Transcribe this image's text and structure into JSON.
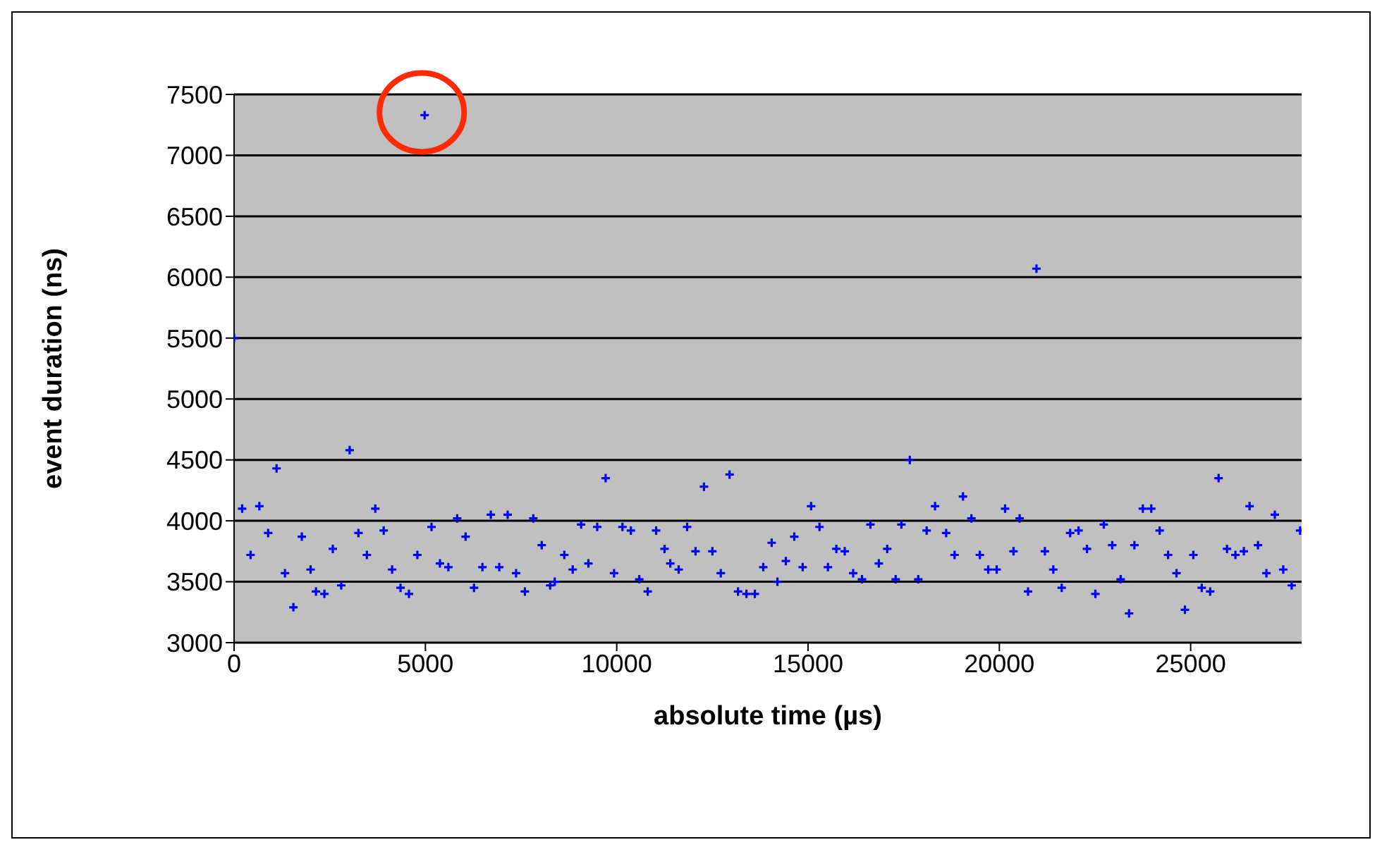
{
  "chart_data": {
    "type": "scatter",
    "xlabel": "absolute time (µs)",
    "ylabel": "event duration (ns)",
    "xlim": [
      0,
      27900
    ],
    "xticks": [
      0,
      5000,
      10000,
      15000,
      20000,
      25000
    ],
    "ylim": [
      3000,
      7500
    ],
    "yticks": [
      3000,
      3500,
      4000,
      4500,
      5000,
      5500,
      6000,
      6500,
      7000,
      7500
    ],
    "grid": "y",
    "legend": false,
    "marker": "cross",
    "series": [
      {
        "color": "#0000ff",
        "x": [
          0,
          210,
          430,
          660,
          890,
          1110,
          1330,
          1550,
          1770,
          2000,
          2140,
          2360,
          2580,
          2800,
          3020,
          3250,
          3470,
          3690,
          3910,
          4130,
          4350,
          4570,
          4790,
          4980,
          5160,
          5380,
          5600,
          5830,
          6050,
          6270,
          6490,
          6710,
          6930,
          7150,
          7370,
          7600,
          7820,
          8040,
          8260,
          8380,
          8630,
          8850,
          9070,
          9260,
          9490,
          9710,
          9930,
          10150,
          10370,
          10590,
          10810,
          11030,
          11250,
          11400,
          11620,
          11840,
          12060,
          12280,
          12500,
          12720,
          12950,
          13170,
          13390,
          13610,
          13830,
          14050,
          14200,
          14420,
          14640,
          14860,
          15080,
          15300,
          15520,
          15740,
          15960,
          16180,
          16410,
          16630,
          16850,
          17070,
          17290,
          17440,
          17660,
          17880,
          18100,
          18320,
          18610,
          18830,
          19050,
          19270,
          19490,
          19710,
          19930,
          20150,
          20370,
          20530,
          20750,
          20970,
          21190,
          21410,
          21630,
          21850,
          22070,
          22290,
          22510,
          22730,
          22950,
          23170,
          23390,
          23530,
          23750,
          23970,
          24190,
          24410,
          24630,
          24850,
          25070,
          25290,
          25510,
          25730,
          25950,
          26170,
          26390,
          26540,
          26760,
          26980,
          27200,
          27420,
          27640,
          27860
        ],
        "values": [
          5500,
          4100,
          3720,
          4120,
          3900,
          4430,
          3570,
          3290,
          3870,
          3600,
          3420,
          3400,
          3770,
          3470,
          4580,
          3900,
          3720,
          4100,
          3920,
          3600,
          3450,
          3400,
          3720,
          7330,
          3950,
          3650,
          3620,
          4020,
          3870,
          3450,
          3620,
          4050,
          3620,
          4050,
          3570,
          3420,
          4020,
          3800,
          3470,
          3500,
          3720,
          3600,
          3970,
          3650,
          3950,
          4350,
          3570,
          3950,
          3920,
          3520,
          3420,
          3920,
          3770,
          3650,
          3600,
          3950,
          3750,
          4280,
          3750,
          3570,
          4380,
          3420,
          3400,
          3400,
          3620,
          3820,
          3500,
          3670,
          3870,
          3620,
          4120,
          3950,
          3620,
          3770,
          3750,
          3570,
          3520,
          3970,
          3650,
          3770,
          3520,
          3970,
          4500,
          3520,
          3920,
          4120,
          3900,
          3720,
          4200,
          4020,
          3720,
          3600,
          3600,
          4100,
          3750,
          4020,
          3420,
          6070,
          3750,
          3600,
          3450,
          3900,
          3920,
          3770,
          3400,
          3970,
          3800,
          3520,
          3240,
          3800,
          4100,
          4100,
          3920,
          3720,
          3570,
          3270,
          3720,
          3450,
          3420,
          4350,
          3770,
          3720,
          3750,
          4120,
          3800,
          3570,
          4050,
          3600,
          3470,
          3920
        ]
      }
    ]
  }
}
